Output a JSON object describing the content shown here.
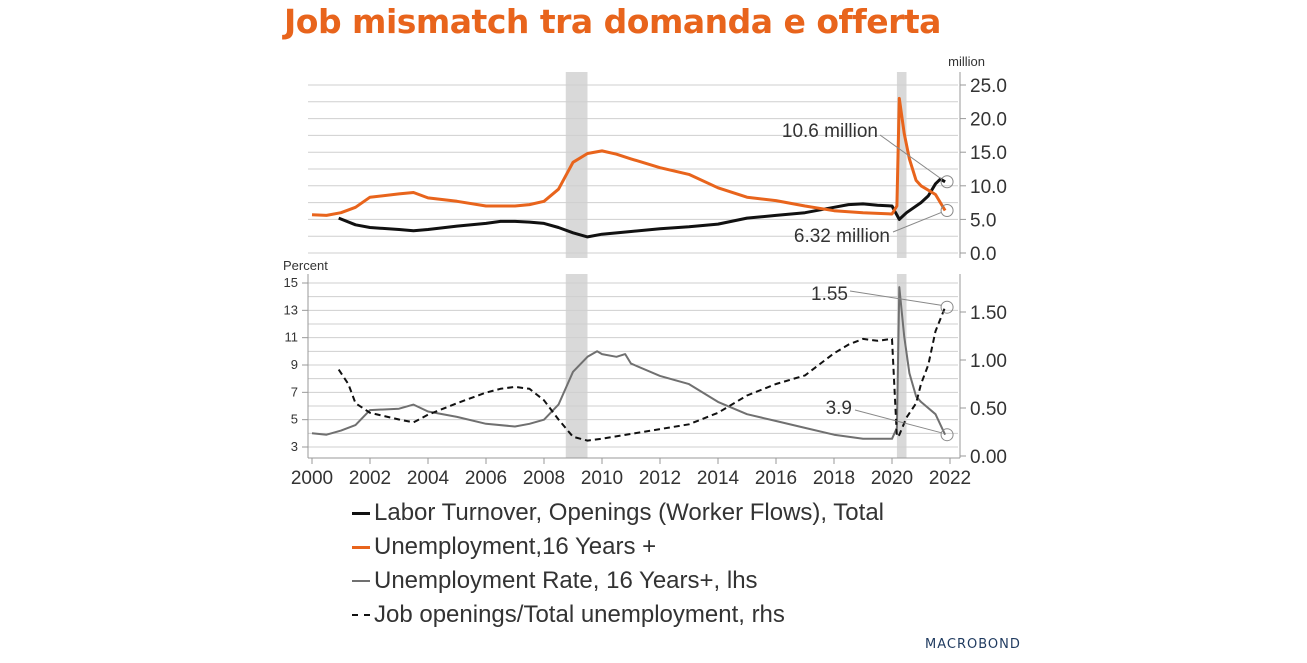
{
  "title": "Job mismatch tra domanda e offerta",
  "brand": "MACROBOND",
  "colors": {
    "title": "#e8641c",
    "openings": "#111111",
    "unemployment": "#e8641c",
    "rate": "#707070",
    "ratio": "#111111",
    "recession": "#d9d9d9",
    "grid": "#cfcfcf"
  },
  "chart_data": [
    {
      "type": "line",
      "panel": "top",
      "unit_label": "million",
      "ylim": [
        0,
        25
      ],
      "yticks": [
        "25.0",
        "20.0",
        "15.0",
        "10.0",
        "5.0",
        "0.0"
      ],
      "axis": "right",
      "recessions": [
        [
          2008.75,
          2009.5
        ],
        [
          2020.17,
          2020.5
        ]
      ],
      "annotations": [
        {
          "text": "10.6 million",
          "x": 2021.83,
          "y": 10.6
        },
        {
          "text": "6.32 million",
          "x": 2021.83,
          "y": 6.32
        }
      ],
      "series": [
        {
          "name": "Labor Turnover, Openings (Worker Flows), Total",
          "color": "#111111",
          "points": [
            [
              2000.92,
              5.2
            ],
            [
              2001.5,
              4.2
            ],
            [
              2002,
              3.8
            ],
            [
              2003,
              3.5
            ],
            [
              2003.5,
              3.3
            ],
            [
              2004,
              3.5
            ],
            [
              2005,
              4
            ],
            [
              2006,
              4.4
            ],
            [
              2006.5,
              4.7
            ],
            [
              2007,
              4.7
            ],
            [
              2007.5,
              4.6
            ],
            [
              2008,
              4.4
            ],
            [
              2008.5,
              3.8
            ],
            [
              2009,
              3
            ],
            [
              2009.5,
              2.4
            ],
            [
              2010,
              2.8
            ],
            [
              2011,
              3.2
            ],
            [
              2012,
              3.6
            ],
            [
              2013,
              3.9
            ],
            [
              2014,
              4.3
            ],
            [
              2015,
              5.2
            ],
            [
              2016,
              5.6
            ],
            [
              2017,
              6
            ],
            [
              2018,
              6.8
            ],
            [
              2018.5,
              7.2
            ],
            [
              2019,
              7.3
            ],
            [
              2019.5,
              7.1
            ],
            [
              2020,
              7
            ],
            [
              2020.25,
              5
            ],
            [
              2020.5,
              6
            ],
            [
              2021,
              7.5
            ],
            [
              2021.25,
              8.5
            ],
            [
              2021.5,
              10.3
            ],
            [
              2021.67,
              11
            ],
            [
              2021.83,
              10.6
            ]
          ]
        },
        {
          "name": "Unemployment,16 Years +",
          "color": "#e8641c",
          "points": [
            [
              2000,
              5.7
            ],
            [
              2000.5,
              5.6
            ],
            [
              2001,
              6
            ],
            [
              2001.5,
              6.8
            ],
            [
              2002,
              8.3
            ],
            [
              2003,
              8.8
            ],
            [
              2003.5,
              9
            ],
            [
              2004,
              8.2
            ],
            [
              2005,
              7.7
            ],
            [
              2006,
              7
            ],
            [
              2007,
              7
            ],
            [
              2007.5,
              7.2
            ],
            [
              2008,
              7.7
            ],
            [
              2008.5,
              9.5
            ],
            [
              2009,
              13.5
            ],
            [
              2009.5,
              14.8
            ],
            [
              2010,
              15.2
            ],
            [
              2010.5,
              14.7
            ],
            [
              2011,
              14
            ],
            [
              2012,
              12.7
            ],
            [
              2013,
              11.7
            ],
            [
              2014,
              9.7
            ],
            [
              2015,
              8.3
            ],
            [
              2016,
              7.8
            ],
            [
              2017,
              7
            ],
            [
              2018,
              6.3
            ],
            [
              2019,
              6
            ],
            [
              2020,
              5.8
            ],
            [
              2020.17,
              7
            ],
            [
              2020.25,
              23
            ],
            [
              2020.42,
              17.8
            ],
            [
              2020.6,
              14
            ],
            [
              2020.83,
              10.8
            ],
            [
              2021,
              10
            ],
            [
              2021.5,
              8.7
            ],
            [
              2021.83,
              6.32
            ]
          ]
        }
      ]
    },
    {
      "type": "line",
      "panel": "bottom",
      "left_axis_label": "Percent",
      "left_ylim": [
        3,
        15
      ],
      "left_yticks": [
        "15",
        "13",
        "11",
        "9",
        "7",
        "5",
        "3"
      ],
      "right_ylim": [
        0,
        1.8
      ],
      "right_yticks": [
        "1.50",
        "1.00",
        "0.50",
        "0.00"
      ],
      "x_ticks": [
        "2000",
        "2002",
        "2004",
        "2006",
        "2008",
        "2010",
        "2012",
        "2014",
        "2016",
        "2018",
        "2020",
        "2022"
      ],
      "recessions": [
        [
          2008.75,
          2009.5
        ],
        [
          2020.17,
          2020.5
        ]
      ],
      "annotations": [
        {
          "text": "1.55",
          "x": 2021.83,
          "y": 1.55,
          "axis": "right"
        },
        {
          "text": "3.9",
          "x": 2021.83,
          "y": 3.9,
          "axis": "left"
        }
      ],
      "series": [
        {
          "name": "Unemployment Rate, 16 Years+, lhs",
          "color": "#707070",
          "axis": "left",
          "points": [
            [
              2000,
              4
            ],
            [
              2000.5,
              3.9
            ],
            [
              2001,
              4.2
            ],
            [
              2001.5,
              4.6
            ],
            [
              2002,
              5.7
            ],
            [
              2003,
              5.8
            ],
            [
              2003.5,
              6.1
            ],
            [
              2004,
              5.6
            ],
            [
              2005,
              5.2
            ],
            [
              2006,
              4.7
            ],
            [
              2007,
              4.5
            ],
            [
              2007.5,
              4.7
            ],
            [
              2008,
              5
            ],
            [
              2008.5,
              6.1
            ],
            [
              2009,
              8.5
            ],
            [
              2009.5,
              9.6
            ],
            [
              2009.83,
              10
            ],
            [
              2010,
              9.8
            ],
            [
              2010.5,
              9.6
            ],
            [
              2010.8,
              9.8
            ],
            [
              2011,
              9.1
            ],
            [
              2012,
              8.2
            ],
            [
              2013,
              7.6
            ],
            [
              2014,
              6.3
            ],
            [
              2015,
              5.4
            ],
            [
              2016,
              4.9
            ],
            [
              2017,
              4.4
            ],
            [
              2018,
              3.9
            ],
            [
              2019,
              3.6
            ],
            [
              2020,
              3.6
            ],
            [
              2020.17,
              4.4
            ],
            [
              2020.25,
              14.7
            ],
            [
              2020.42,
              11.1
            ],
            [
              2020.6,
              8.4
            ],
            [
              2020.83,
              6.7
            ],
            [
              2021,
              6.3
            ],
            [
              2021.5,
              5.4
            ],
            [
              2021.83,
              3.9
            ]
          ]
        },
        {
          "name": "Job openings/Total unemployment, rhs",
          "color": "#111111",
          "axis": "right",
          "dashed": true,
          "points": [
            [
              2000.92,
              0.9
            ],
            [
              2001.25,
              0.75
            ],
            [
              2001.5,
              0.55
            ],
            [
              2002,
              0.45
            ],
            [
              2003,
              0.38
            ],
            [
              2003.5,
              0.35
            ],
            [
              2004,
              0.43
            ],
            [
              2005,
              0.55
            ],
            [
              2006,
              0.66
            ],
            [
              2006.5,
              0.7
            ],
            [
              2007,
              0.72
            ],
            [
              2007.5,
              0.7
            ],
            [
              2008,
              0.58
            ],
            [
              2008.5,
              0.38
            ],
            [
              2009,
              0.2
            ],
            [
              2009.5,
              0.16
            ],
            [
              2010,
              0.18
            ],
            [
              2011,
              0.23
            ],
            [
              2012,
              0.28
            ],
            [
              2013,
              0.33
            ],
            [
              2014,
              0.45
            ],
            [
              2015,
              0.63
            ],
            [
              2016,
              0.75
            ],
            [
              2017,
              0.84
            ],
            [
              2018,
              1.07
            ],
            [
              2018.5,
              1.16
            ],
            [
              2019,
              1.22
            ],
            [
              2019.5,
              1.2
            ],
            [
              2020,
              1.22
            ],
            [
              2020.17,
              0.2
            ],
            [
              2020.25,
              0.22
            ],
            [
              2020.5,
              0.4
            ],
            [
              2020.83,
              0.55
            ],
            [
              2021,
              0.75
            ],
            [
              2021.25,
              0.95
            ],
            [
              2021.5,
              1.3
            ],
            [
              2021.83,
              1.55
            ]
          ]
        }
      ]
    }
  ]
}
